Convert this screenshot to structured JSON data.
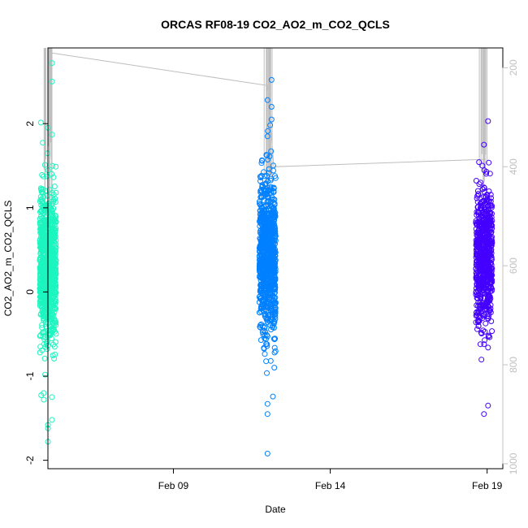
{
  "chart_data": {
    "type": "scatter",
    "title": "ORCAS RF08-19 CO2_AO2_m_CO2_QCLS",
    "xlabel": "Date",
    "ylabel": "CO2_AO2_m_CO2_QCLS",
    "x_ticks": [
      "Feb 09",
      "Feb 14",
      "Feb 19"
    ],
    "y_ticks": [
      "-2",
      "-1",
      "0",
      "1",
      "2"
    ],
    "y2_ticks": [
      "200",
      "400",
      "600",
      "800",
      "1000"
    ],
    "y2_reversed": true,
    "xlim": [
      "2016-02-05",
      "2016-02-19.5"
    ],
    "ylim": [
      -2.1,
      2.9
    ],
    "y2lim": [
      1010,
      160
    ],
    "grid": false,
    "series": [
      {
        "date": "2016-02-05",
        "color": "#1cf5c0",
        "points": 900,
        "center": 0.3,
        "spread": 0.45,
        "ymin": -1.78,
        "ymax": 2.72,
        "outliers": [
          [
            -1.78,
            0
          ],
          [
            -1.62,
            0
          ],
          [
            -1.58,
            0
          ],
          [
            -1.52,
            1
          ],
          [
            -1.28,
            -1
          ],
          [
            -1.25,
            1
          ],
          [
            2.5,
            1
          ],
          [
            2.72,
            1
          ],
          [
            1.95,
            0
          ],
          [
            1.87,
            1
          ]
        ]
      },
      {
        "date": "2016-02-12",
        "color": "#0080ff",
        "points": 900,
        "center": 0.45,
        "spread": 0.45,
        "ymin": -1.92,
        "ymax": 2.52,
        "outliers": [
          [
            -1.92,
            0
          ],
          [
            -1.45,
            0
          ],
          [
            -1.33,
            0
          ],
          [
            2.52,
            1
          ],
          [
            2.28,
            0
          ],
          [
            2.2,
            1
          ],
          [
            2.05,
            1
          ],
          [
            1.85,
            0
          ]
        ]
      },
      {
        "date": "2016-02-18.9",
        "color": "#4400ff",
        "points": 700,
        "center": 0.4,
        "spread": 0.4,
        "ymin": -1.45,
        "ymax": 2.03,
        "outliers": [
          [
            -1.45,
            0
          ],
          [
            -1.35,
            1
          ],
          [
            2.03,
            1
          ],
          [
            1.75,
            0
          ]
        ]
      }
    ],
    "altitude_trace": {
      "color": "#bebebe",
      "x": [
        "2016-02-05.1",
        "2016-02-12",
        "2016-02-12.2",
        "2016-02-18.95"
      ],
      "y2": [
        170,
        236,
        400,
        385
      ]
    }
  }
}
